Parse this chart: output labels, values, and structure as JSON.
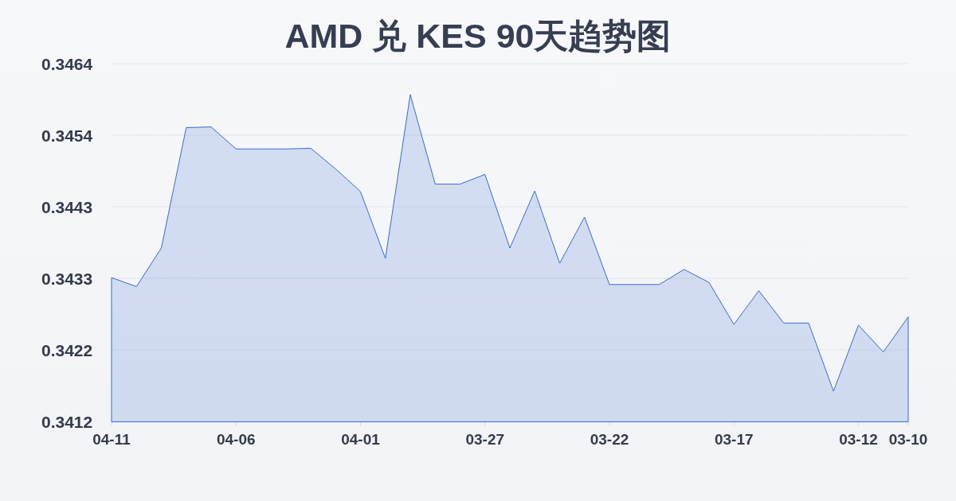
{
  "chart_data": {
    "type": "area",
    "title": "AMD 兑 KES 90天趋势图",
    "categories": [
      "04-11",
      null,
      null,
      null,
      null,
      "04-06",
      null,
      null,
      null,
      null,
      "04-01",
      null,
      null,
      null,
      null,
      "03-27",
      null,
      null,
      null,
      null,
      "03-22",
      null,
      null,
      null,
      null,
      "03-17",
      null,
      null,
      null,
      null,
      "03-12",
      null,
      "03-10"
    ],
    "series": [
      {
        "color": "#3a6bd0",
        "values": [
          0.34329,
          0.34316,
          0.34372,
          0.34547,
          0.34548,
          0.34516,
          0.34516,
          0.34516,
          0.34517,
          0.34487,
          0.34454,
          0.34357,
          0.34595,
          0.34465,
          0.34465,
          0.34479,
          0.34372,
          0.34455,
          0.3435,
          0.34417,
          0.34319,
          0.34319,
          0.34319,
          0.34341,
          0.34322,
          0.34261,
          0.3431,
          0.34263,
          0.34263,
          0.34164,
          0.3426,
          0.34221,
          0.34272
        ]
      }
    ],
    "ylim": [
      0.3412,
      0.3464
    ],
    "yticks": [
      0.3412,
      {
        "value": 0.34224,
        "label": "0.3422"
      },
      {
        "value": 0.34328,
        "label": "0.3433"
      },
      {
        "value": 0.34432,
        "label": "0.3443"
      },
      {
        "value": 0.34536,
        "label": "0.3454"
      },
      0.3464
    ],
    "grid": "y"
  }
}
